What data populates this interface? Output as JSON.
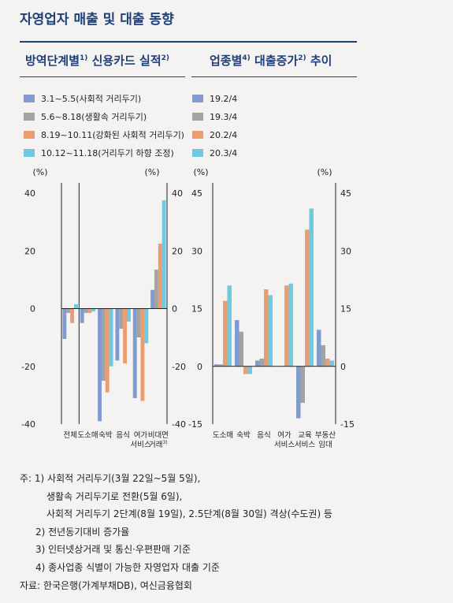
{
  "title": "자영업자 매출 및 대출 동향",
  "colors": {
    "blue": "#7f9bd0",
    "gray": "#a3a3a3",
    "orange": "#eb9c70",
    "cyan": "#6dcae0",
    "navy": "#1f3f7a"
  },
  "chart_data": [
    {
      "type": "bar",
      "title": "방역단계별",
      "title_sup": "1)",
      "title_rest": " 신용카드 실적",
      "title_sup2": "2)",
      "unit_left": "(%)",
      "unit_right": "(%)",
      "ylim": [
        -40,
        40
      ],
      "yticks": [
        "40",
        "20",
        "0",
        "-20",
        "-40"
      ],
      "categories": [
        "전체",
        "도소매",
        "숙박",
        "음식",
        "여가 서비스",
        "비대면 거래"
      ],
      "category_lines": [
        [
          "전체"
        ],
        [
          "도소매"
        ],
        [
          "숙박"
        ],
        [
          "음식"
        ],
        [
          "여가",
          "서비스"
        ],
        [
          "비대면",
          "거래"
        ]
      ],
      "category_sup": [
        "",
        "",
        "",
        "",
        "",
        "3)"
      ],
      "series": [
        {
          "name": "3.1~5.5(사회적 거리두기)",
          "values": [
            -10.5,
            -5,
            -39,
            -18,
            -31,
            6.5
          ]
        },
        {
          "name": "5.6~8.18(생활속 거리두기)",
          "values": [
            -1.5,
            -1.5,
            -25,
            -7,
            -10,
            13.5
          ]
        },
        {
          "name": "8.19~10.11(강화된 사회적 거리두기)",
          "values": [
            -5,
            -1.5,
            -29,
            -19,
            -32,
            22.5
          ]
        },
        {
          "name": "10.12~11.18(거리두기 하향 조정)",
          "values": [
            1.5,
            -1,
            -20,
            -4.5,
            -12,
            37.5
          ]
        }
      ]
    },
    {
      "type": "bar",
      "title": "업종별",
      "title_sup": "4)",
      "title_rest": " 대출증가",
      "title_sup2": "2)",
      "title_end": " 추이",
      "unit_left": "(%)",
      "unit_right": "(%)",
      "ylim": [
        -15,
        45
      ],
      "yticks": [
        "45",
        "30",
        "15",
        "0",
        "-15"
      ],
      "categories": [
        "도소매",
        "숙박",
        "음식",
        "여가 서비스",
        "교육 서비스",
        "부동산 임대"
      ],
      "category_lines": [
        [
          "도소매"
        ],
        [
          "숙박"
        ],
        [
          "음식"
        ],
        [
          "여가",
          "서비스"
        ],
        [
          "교육",
          "서비스"
        ],
        [
          "부동산",
          "임대"
        ]
      ],
      "series": [
        {
          "name": "19.2/4",
          "values": [
            0.5,
            12,
            1.5,
            0,
            -13.5,
            9.5
          ]
        },
        {
          "name": "19.3/4",
          "values": [
            0.5,
            9,
            2,
            0,
            -9.5,
            5.5
          ]
        },
        {
          "name": "20.2/4",
          "values": [
            17,
            -2,
            20,
            21,
            35.5,
            2
          ]
        },
        {
          "name": "20.3/4",
          "values": [
            21,
            -2,
            18.5,
            21.5,
            41,
            1.5
          ]
        }
      ]
    }
  ],
  "notes": [
    "주: 1) 사회적 거리두기(3월 22일~5월 5일),",
    "생활속 거리두기로 전환(5월 6일),",
    "사회적 거리두기 2단계(8월 19일), 2.5단계(8월 30일) 격상(수도권) 등",
    "2) 전년동기대비 증가율",
    "3) 인터넷상거래 및 통신·우편판매 기준",
    "4) 종사업종 식별이 가능한 자영업자 대출 기준",
    "자료: 한국은행(가계부채DB), 여신금융협회"
  ]
}
